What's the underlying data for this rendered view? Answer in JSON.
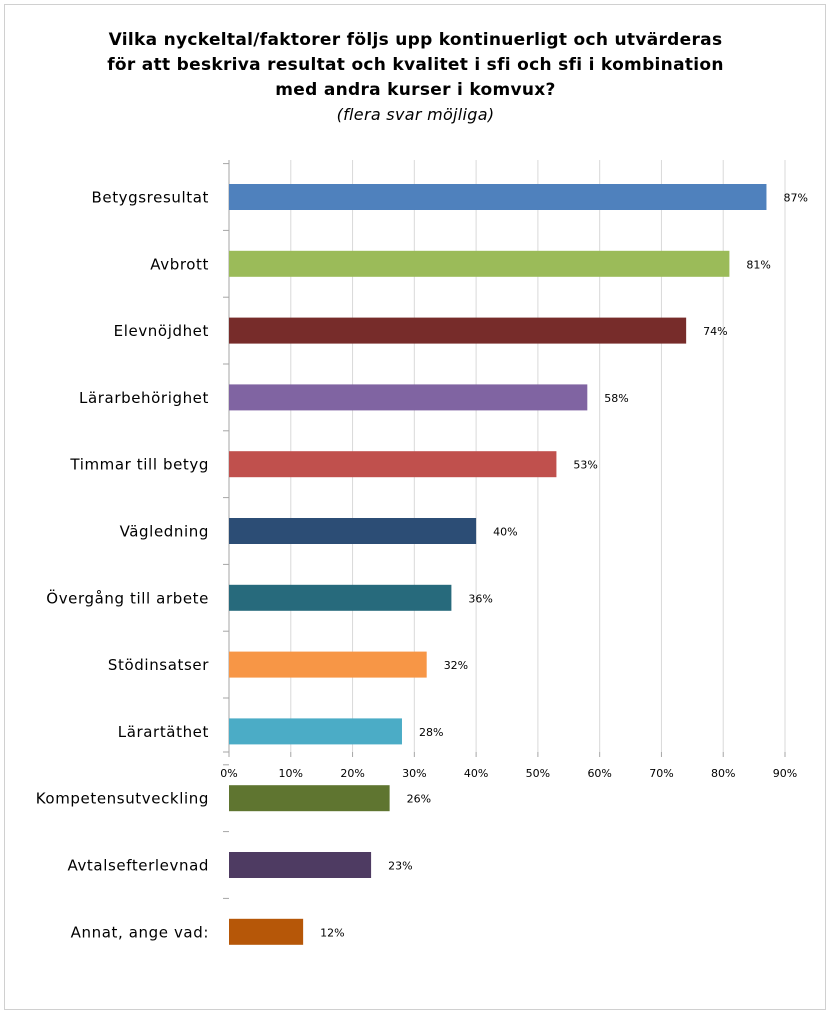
{
  "chart_data": {
    "type": "bar",
    "orientation": "horizontal",
    "title_lines": [
      "Vilka nyckeltal/faktorer följs upp kontinuerligt och utvärderas",
      "för att beskriva resultat och kvalitet i sfi och sfi i kombination",
      "med andra kurser i komvux?"
    ],
    "subtitle": "(flera svar möjliga)",
    "categories": [
      "Betygsresultat",
      "Avbrott",
      "Elevnöjdhet",
      "Lärarbehörighet",
      "Timmar till betyg",
      "Vägledning",
      "Övergång till arbete",
      "Stödinsatser",
      "Lärartäthet",
      "Kompetensutveckling",
      "Avtalsefterlevnad",
      "Annat, ange vad:"
    ],
    "values": [
      87,
      81,
      74,
      58,
      53,
      40,
      36,
      32,
      28,
      26,
      23,
      12
    ],
    "value_labels": [
      "87%",
      "81%",
      "74%",
      "58%",
      "53%",
      "40%",
      "36%",
      "32%",
      "28%",
      "26%",
      "23%",
      "12%"
    ],
    "colors": [
      "#4f81bd",
      "#9bbb59",
      "#772c2a",
      "#8064a2",
      "#c0504d",
      "#2c4d75",
      "#276a7c",
      "#f79646",
      "#4bacc6",
      "#5f7530",
      "#4e3b62",
      "#b65708"
    ],
    "x_ticks": [
      "0%",
      "10%",
      "20%",
      "30%",
      "40%",
      "50%",
      "60%",
      "70%",
      "80%",
      "90%"
    ],
    "xlim": [
      0,
      90
    ],
    "grid": "vertical",
    "legend": "none"
  }
}
